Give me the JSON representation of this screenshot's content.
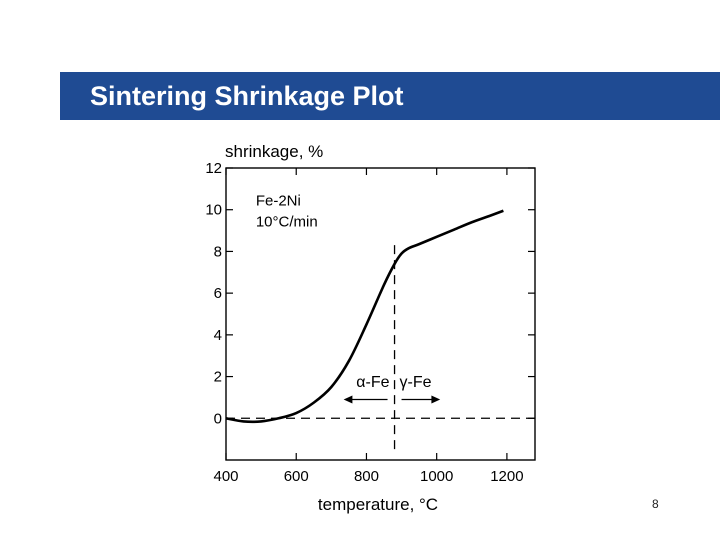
{
  "slide": {
    "title": "Sintering Shrinkage Plot",
    "page_number": "8"
  },
  "colors": {
    "title_bar": "#1f4b93",
    "title_text": "#ffffff"
  },
  "chart_data": {
    "type": "line",
    "title": "",
    "xlabel": "temperature, °C",
    "ylabel": "shrinkage, %",
    "xlim": [
      400,
      1280
    ],
    "ylim": [
      -2,
      12
    ],
    "x_ticks": [
      400,
      600,
      800,
      1000,
      1200
    ],
    "x_tick_labels": [
      "400",
      "600",
      "800",
      "1000",
      "1200"
    ],
    "y_ticks": [
      0,
      2,
      4,
      6,
      8,
      10,
      12
    ],
    "y_tick_labels": [
      "0",
      "2",
      "4",
      "6",
      "8",
      "10",
      "12"
    ],
    "grid": false,
    "legend": "none",
    "annotation": {
      "line1": "Fe-2Ni",
      "line2": "10°C/min"
    },
    "series": [
      {
        "x": [
          400,
          450,
          500,
          550,
          600,
          650,
          700,
          750,
          800,
          850,
          880,
          900,
          920,
          950,
          1000,
          1050,
          1100,
          1150,
          1190
        ],
        "values": [
          0.0,
          -0.15,
          -0.15,
          0.0,
          0.25,
          0.75,
          1.5,
          2.75,
          4.5,
          6.4,
          7.4,
          7.9,
          8.15,
          8.35,
          8.7,
          9.05,
          9.4,
          9.7,
          9.95
        ]
      }
    ],
    "baseline": {
      "y": 0,
      "style": "dashed"
    },
    "phase_boundary": {
      "x": 880,
      "style": "dashed",
      "left_label": "α-Fe",
      "right_label": "γ-Fe"
    }
  }
}
